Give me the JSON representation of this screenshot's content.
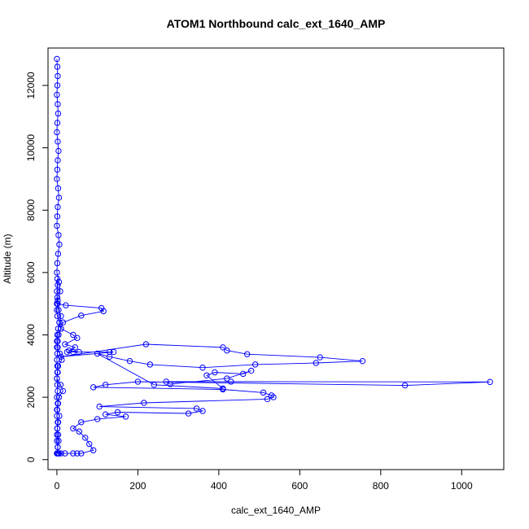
{
  "chart_data": {
    "type": "scatter",
    "title": "ATOM1 Northbound calc_ext_1640_AMP",
    "xlabel": "calc_ext_1640_AMP",
    "ylabel": "Altitude (m)",
    "xlim": [
      -22,
      1104
    ],
    "ylim": [
      -320,
      13200
    ],
    "x_ticks": [
      0,
      200,
      400,
      600,
      800,
      1000
    ],
    "y_ticks": [
      0,
      2000,
      4000,
      6000,
      8000,
      10000,
      12000
    ],
    "series_color": "#0000ff",
    "marker": "open-circle",
    "line": true,
    "series": [
      {
        "x": [
          0,
          1,
          2,
          1,
          0,
          2,
          3,
          1,
          0,
          2,
          4,
          2,
          1,
          0,
          3,
          5,
          2,
          1,
          0,
          4,
          6,
          3,
          1,
          0,
          5,
          8,
          2,
          0,
          1,
          6,
          10,
          4,
          2,
          0,
          7,
          12,
          3,
          1,
          0,
          9,
          15,
          5,
          2,
          0,
          6,
          3,
          1,
          0,
          4,
          2,
          3,
          1,
          2,
          0,
          3,
          1,
          2,
          0,
          1,
          3,
          0,
          2,
          1,
          0,
          2,
          1,
          0,
          1,
          2,
          0,
          1,
          3,
          6,
          10,
          4,
          2,
          1,
          0,
          2,
          1,
          0,
          22,
          110,
          115,
          60,
          15,
          10,
          40,
          50,
          20,
          45,
          30,
          55,
          40,
          25,
          130,
          140,
          10,
          220,
          410,
          420,
          470,
          650,
          755,
          640,
          490,
          360,
          230,
          180,
          130,
          100,
          240,
          410,
          370,
          390,
          460,
          480,
          420,
          280,
          270,
          430,
          1070,
          860,
          200,
          120,
          90,
          410,
          510,
          530,
          535,
          520,
          215,
          105,
          345,
          360,
          325,
          150,
          120,
          170,
          100,
          60,
          40,
          55,
          70,
          80,
          90,
          60,
          40,
          50,
          20,
          10,
          5,
          2,
          0
        ],
        "y": [
          12850,
          12600,
          12300,
          12000,
          11700,
          11400,
          11100,
          10800,
          10500,
          10200,
          9900,
          9600,
          9300,
          9000,
          8700,
          8400,
          8100,
          7800,
          7500,
          7200,
          6900,
          6600,
          6300,
          6000,
          5700,
          5400,
          5100,
          4800,
          4600,
          4400,
          4200,
          4000,
          3800,
          3600,
          3400,
          3200,
          3000,
          2800,
          2600,
          2400,
          2200,
          2000,
          1800,
          1600,
          1400,
          1200,
          1000,
          800,
          600,
          400,
          200,
          200,
          400,
          600,
          800,
          1000,
          1200,
          1400,
          1600,
          1800,
          2000,
          2200,
          2400,
          2600,
          2800,
          3000,
          3200,
          3400,
          3600,
          3800,
          4000,
          4200,
          4400,
          4600,
          4800,
          5000,
          5200,
          5400,
          5600,
          5800,
          5000,
          4950,
          4860,
          4760,
          4620,
          4400,
          4200,
          4000,
          3900,
          3700,
          3600,
          3500,
          3450,
          3450,
          3450,
          3450,
          3450,
          3300,
          3700,
          3600,
          3500,
          3380,
          3280,
          3160,
          3100,
          3050,
          2950,
          3050,
          3160,
          3300,
          3400,
          2400,
          2280,
          2700,
          2800,
          2750,
          2850,
          2600,
          2420,
          2500,
          2500,
          2490,
          2380,
          2500,
          2400,
          2320,
          2250,
          2150,
          2060,
          2000,
          1940,
          1820,
          1700,
          1640,
          1560,
          1480,
          1520,
          1450,
          1380,
          1300,
          1200,
          1000,
          900,
          700,
          500,
          300,
          200,
          200,
          200,
          200,
          200,
          200,
          200,
          200
        ]
      }
    ]
  }
}
